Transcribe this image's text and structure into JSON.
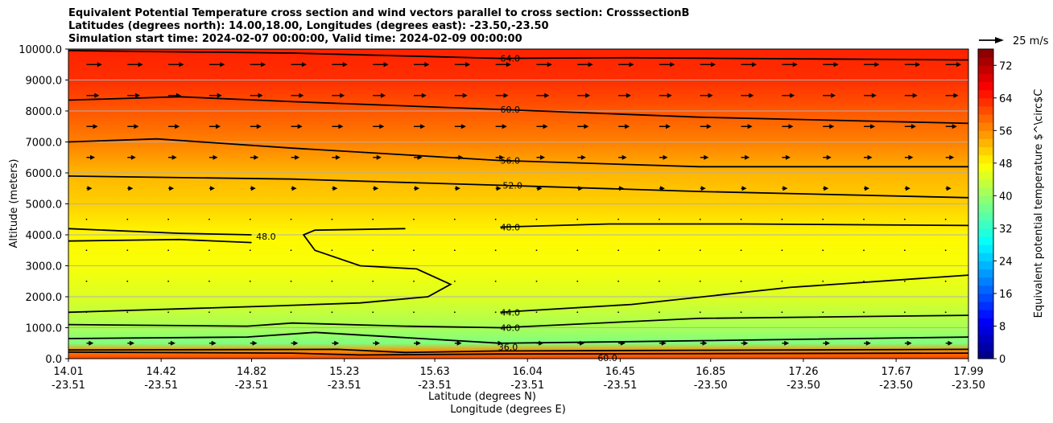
{
  "chart_data": {
    "type": "contourf",
    "title_lines": [
      "Equivalent Potential Temperature cross section and wind vectors parallel to cross section: CrosssectionB",
      "Latitudes (degrees north): 14.00,18.00, Longitudes (degrees east): -23.50,-23.50",
      "Simulation start time: 2024-02-07 00:00:00, Valid time: 2024-02-09 00:00:00"
    ],
    "ylabel": "Altitude (meters)",
    "xlabel_lat": "Latitude (degrees N)",
    "xlabel_lon": "Longitude (degrees E)",
    "ylim": [
      0,
      10000
    ],
    "yticks": [
      "0.0",
      "1000.0",
      "2000.0",
      "3000.0",
      "4000.0",
      "5000.0",
      "6000.0",
      "7000.0",
      "8000.0",
      "9000.0",
      "10000.0"
    ],
    "ytick_values": [
      0,
      1000,
      2000,
      3000,
      4000,
      5000,
      6000,
      7000,
      8000,
      9000,
      10000
    ],
    "xlim": [
      14.01,
      17.99
    ],
    "xticks_lat": [
      "14.01",
      "14.42",
      "14.82",
      "15.23",
      "15.63",
      "16.04",
      "16.45",
      "16.85",
      "17.26",
      "17.67",
      "17.99"
    ],
    "xticks_lon": [
      "-23.51",
      "-23.51",
      "-23.51",
      "-23.51",
      "-23.51",
      "-23.51",
      "-23.51",
      "-23.50",
      "-23.50",
      "-23.50",
      "-23.50"
    ],
    "xtick_values": [
      14.01,
      14.42,
      14.82,
      15.23,
      15.63,
      16.04,
      16.45,
      16.85,
      17.26,
      17.67,
      17.99
    ],
    "grid": "horizontal",
    "colorbar": {
      "label": "Equivalent potential temperature $^\\circ$C",
      "ticks": [
        "0",
        "8",
        "16",
        "24",
        "32",
        "40",
        "48",
        "56",
        "64",
        "72"
      ],
      "tick_values": [
        0,
        8,
        16,
        24,
        32,
        40,
        48,
        56,
        64,
        72
      ],
      "range": [
        0,
        76
      ],
      "levels_step": 2,
      "cmap": "jet"
    },
    "quiver_key": {
      "label": "25 m/s",
      "speed": 25
    },
    "theta_e_profile": [
      {
        "alt": 0,
        "value": 62
      },
      {
        "alt": 250,
        "value": 56
      },
      {
        "alt": 500,
        "value": 38
      },
      {
        "alt": 1000,
        "value": 41
      },
      {
        "alt": 2000,
        "value": 45
      },
      {
        "alt": 3000,
        "value": 47
      },
      {
        "alt": 4000,
        "value": 48
      },
      {
        "alt": 5000,
        "value": 51
      },
      {
        "alt": 6000,
        "value": 53
      },
      {
        "alt": 7000,
        "value": 57
      },
      {
        "alt": 8000,
        "value": 60
      },
      {
        "alt": 9000,
        "value": 63
      },
      {
        "alt": 10000,
        "value": 64
      }
    ],
    "contour_labels": [
      {
        "text": "64.0",
        "lat": 15.92,
        "alt": 9700
      },
      {
        "text": "60.0",
        "lat": 15.92,
        "alt": 8050
      },
      {
        "text": "56.0",
        "lat": 15.92,
        "alt": 6400
      },
      {
        "text": "52.0",
        "lat": 15.93,
        "alt": 5600
      },
      {
        "text": "48.0",
        "lat": 15.92,
        "alt": 4250
      },
      {
        "text": "48.0",
        "lat": 14.84,
        "alt": 3950
      },
      {
        "text": "44.0",
        "lat": 15.92,
        "alt": 1500
      },
      {
        "text": "40.0",
        "lat": 15.92,
        "alt": 1000
      },
      {
        "text": "36.0",
        "lat": 15.91,
        "alt": 380
      },
      {
        "text": "60.0",
        "lat": 16.35,
        "alt": 20
      }
    ],
    "wind_profile_ms": [
      {
        "alt": 9500,
        "u": 11
      },
      {
        "alt": 8500,
        "u": 9
      },
      {
        "alt": 7500,
        "u": 8
      },
      {
        "alt": 6500,
        "u": 6
      },
      {
        "alt": 5500,
        "u": 4
      },
      {
        "alt": 4500,
        "u": 2
      },
      {
        "alt": 3500,
        "u": 1
      },
      {
        "alt": 2500,
        "u": 1
      },
      {
        "alt": 1500,
        "u": 2
      },
      {
        "alt": 500,
        "u": 5
      }
    ]
  }
}
